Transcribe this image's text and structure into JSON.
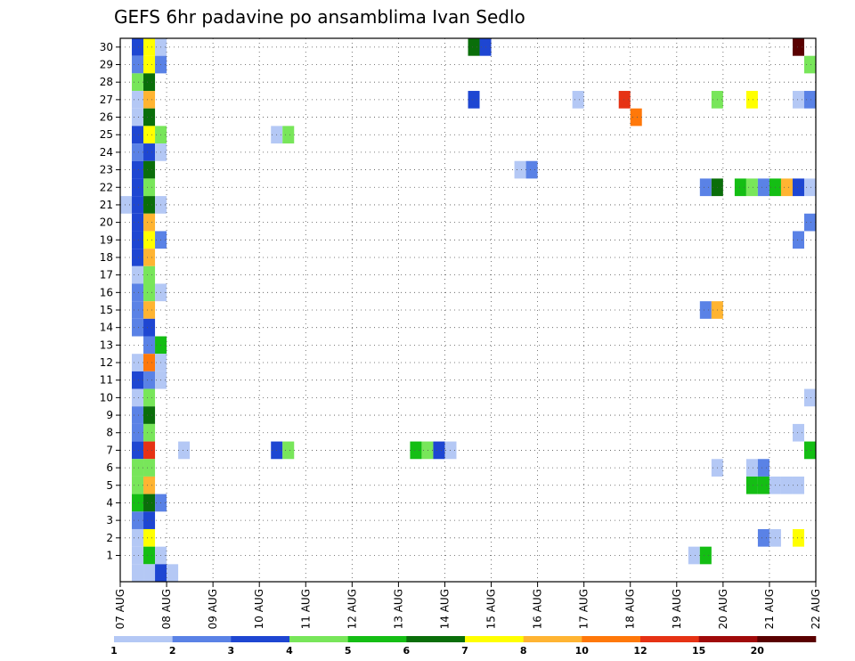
{
  "chart_data": {
    "type": "heatmap",
    "title": "GEFS 6hr padavine po ansamblima Ivan Sedlo",
    "xlabel": "",
    "ylabel": "",
    "x_ticks": [
      "07 AUG",
      "08 AUG",
      "09 AUG",
      "10 AUG",
      "11 AUG",
      "12 AUG",
      "13 AUG",
      "14 AUG",
      "15 AUG",
      "16 AUG",
      "17 AUG",
      "18 AUG",
      "19 AUG",
      "20 AUG",
      "21 AUG",
      "22 AUG"
    ],
    "x_range_days": [
      0,
      15
    ],
    "y_ticks": [
      1,
      2,
      3,
      4,
      5,
      6,
      7,
      8,
      9,
      10,
      11,
      12,
      13,
      14,
      15,
      16,
      17,
      18,
      19,
      20,
      21,
      22,
      23,
      24,
      25,
      26,
      27,
      28,
      29,
      30
    ],
    "y_range": [
      0,
      30
    ],
    "grid": true,
    "colorbar": {
      "labels": [
        "1",
        "2",
        "3",
        "4",
        "5",
        "6",
        "7",
        "8",
        "10",
        "12",
        "15",
        "20"
      ],
      "colors": [
        "#b4c8f5",
        "#5a82e6",
        "#1e46d2",
        "#78e65a",
        "#14be14",
        "#0a6e0a",
        "#ffff00",
        "#ffb432",
        "#ff780a",
        "#e63214",
        "#a00a0a",
        "#5a0000"
      ]
    },
    "step_hours": 6,
    "cells": [
      {
        "m": 30,
        "s": [
          [
            1,
            3
          ],
          [
            2,
            7
          ],
          [
            3,
            1
          ]
        ]
      },
      {
        "m": 29,
        "s": [
          [
            1,
            2
          ],
          [
            2,
            7
          ],
          [
            3,
            2
          ]
        ]
      },
      {
        "m": 28,
        "s": [
          [
            1,
            4
          ],
          [
            2,
            6
          ]
        ]
      },
      {
        "m": 27,
        "s": [
          [
            1,
            1
          ],
          [
            2,
            8
          ]
        ]
      },
      {
        "m": 26,
        "s": [
          [
            1,
            1
          ],
          [
            2,
            6
          ]
        ]
      },
      {
        "m": 25,
        "s": [
          [
            1,
            3
          ],
          [
            2,
            7
          ],
          [
            3,
            4
          ]
        ]
      },
      {
        "m": 24,
        "s": [
          [
            1,
            2
          ],
          [
            2,
            3
          ],
          [
            3,
            1
          ]
        ]
      },
      {
        "m": 23,
        "s": [
          [
            1,
            3
          ],
          [
            2,
            6
          ]
        ]
      },
      {
        "m": 22,
        "s": [
          [
            1,
            3
          ],
          [
            2,
            4
          ]
        ]
      },
      {
        "m": 21,
        "s": [
          [
            0,
            1
          ],
          [
            1,
            3
          ],
          [
            2,
            6
          ],
          [
            3,
            1
          ]
        ]
      },
      {
        "m": 20,
        "s": [
          [
            1,
            3
          ],
          [
            2,
            8
          ]
        ]
      },
      {
        "m": 19,
        "s": [
          [
            1,
            3
          ],
          [
            2,
            7
          ],
          [
            3,
            2
          ]
        ]
      },
      {
        "m": 18,
        "s": [
          [
            1,
            3
          ],
          [
            2,
            8
          ]
        ]
      },
      {
        "m": 17,
        "s": [
          [
            1,
            1
          ],
          [
            2,
            4
          ]
        ]
      },
      {
        "m": 16,
        "s": [
          [
            1,
            2
          ],
          [
            2,
            4
          ],
          [
            3,
            1
          ]
        ]
      },
      {
        "m": 15,
        "s": [
          [
            1,
            2
          ],
          [
            2,
            8
          ]
        ]
      },
      {
        "m": 14,
        "s": [
          [
            1,
            2
          ],
          [
            2,
            3
          ]
        ]
      },
      {
        "m": 13,
        "s": [
          [
            2,
            2
          ],
          [
            3,
            5
          ]
        ]
      },
      {
        "m": 12,
        "s": [
          [
            1,
            1
          ],
          [
            2,
            9
          ],
          [
            3,
            1
          ]
        ]
      },
      {
        "m": 11,
        "s": [
          [
            1,
            3
          ],
          [
            2,
            2
          ],
          [
            3,
            1
          ]
        ]
      },
      {
        "m": 10,
        "s": [
          [
            1,
            1
          ],
          [
            2,
            4
          ]
        ]
      },
      {
        "m": 9,
        "s": [
          [
            1,
            2
          ],
          [
            2,
            6
          ]
        ]
      },
      {
        "m": 8,
        "s": [
          [
            1,
            2
          ],
          [
            2,
            4
          ]
        ]
      },
      {
        "m": 7,
        "s": [
          [
            1,
            3
          ],
          [
            2,
            10
          ]
        ]
      },
      {
        "m": 6,
        "s": [
          [
            1,
            4
          ],
          [
            2,
            4
          ]
        ]
      },
      {
        "m": 5,
        "s": [
          [
            1,
            4
          ],
          [
            2,
            8
          ]
        ]
      },
      {
        "m": 4,
        "s": [
          [
            1,
            5
          ],
          [
            2,
            6
          ],
          [
            3,
            2
          ]
        ]
      },
      {
        "m": 3,
        "s": [
          [
            1,
            2
          ],
          [
            2,
            3
          ]
        ]
      },
      {
        "m": 2,
        "s": [
          [
            1,
            1
          ],
          [
            2,
            7
          ]
        ]
      },
      {
        "m": 1,
        "s": [
          [
            1,
            1
          ],
          [
            2,
            5
          ],
          [
            3,
            1
          ]
        ]
      },
      {
        "m": 0,
        "s": [
          [
            1,
            1
          ],
          [
            2,
            1
          ],
          [
            3,
            3
          ],
          [
            4,
            1
          ]
        ]
      },
      {
        "m": 30,
        "s": [
          [
            30,
            6
          ],
          [
            31,
            3
          ]
        ]
      },
      {
        "m": 25,
        "s": [
          [
            13,
            1
          ],
          [
            14,
            4
          ]
        ]
      },
      {
        "m": 27,
        "s": [
          [
            30,
            3
          ],
          [
            39,
            1
          ],
          [
            43,
            10
          ],
          [
            51,
            4
          ],
          [
            54,
            7
          ],
          [
            58,
            1
          ],
          [
            59,
            2
          ]
        ]
      },
      {
        "m": 26,
        "s": [
          [
            44,
            9
          ]
        ]
      },
      {
        "m": 23,
        "s": [
          [
            34,
            1
          ],
          [
            35,
            2
          ]
        ]
      },
      {
        "m": 22,
        "s": [
          [
            50,
            2
          ],
          [
            51,
            6
          ],
          [
            53,
            5
          ],
          [
            54,
            4
          ],
          [
            55,
            2
          ],
          [
            56,
            5
          ],
          [
            57,
            8
          ],
          [
            58,
            3
          ],
          [
            59,
            1
          ]
        ]
      },
      {
        "m": 19,
        "s": [
          [
            58,
            2
          ]
        ]
      },
      {
        "m": 20,
        "s": [
          [
            59,
            2
          ]
        ]
      },
      {
        "m": 15,
        "s": [
          [
            50,
            2
          ],
          [
            51,
            8
          ]
        ]
      },
      {
        "m": 10,
        "s": [
          [
            59,
            1
          ]
        ]
      },
      {
        "m": 8,
        "s": [
          [
            58,
            1
          ]
        ]
      },
      {
        "m": 7,
        "s": [
          [
            5,
            1
          ],
          [
            13,
            3
          ],
          [
            14,
            4
          ],
          [
            25,
            5
          ],
          [
            26,
            4
          ],
          [
            27,
            3
          ],
          [
            28,
            1
          ],
          [
            59,
            5
          ]
        ]
      },
      {
        "m": 6,
        "s": [
          [
            51,
            1
          ],
          [
            54,
            1
          ],
          [
            55,
            2
          ]
        ]
      },
      {
        "m": 5,
        "s": [
          [
            54,
            5
          ],
          [
            55,
            5
          ],
          [
            56,
            1
          ],
          [
            57,
            1
          ],
          [
            58,
            1
          ]
        ]
      },
      {
        "m": 2,
        "s": [
          [
            55,
            2
          ],
          [
            56,
            1
          ],
          [
            58,
            7
          ]
        ]
      },
      {
        "m": 1,
        "s": [
          [
            49,
            1
          ],
          [
            50,
            5
          ]
        ]
      },
      {
        "m": 29,
        "s": [
          [
            59,
            4
          ]
        ]
      },
      {
        "m": 30,
        "s": [
          [
            58,
            12
          ]
        ]
      }
    ]
  }
}
